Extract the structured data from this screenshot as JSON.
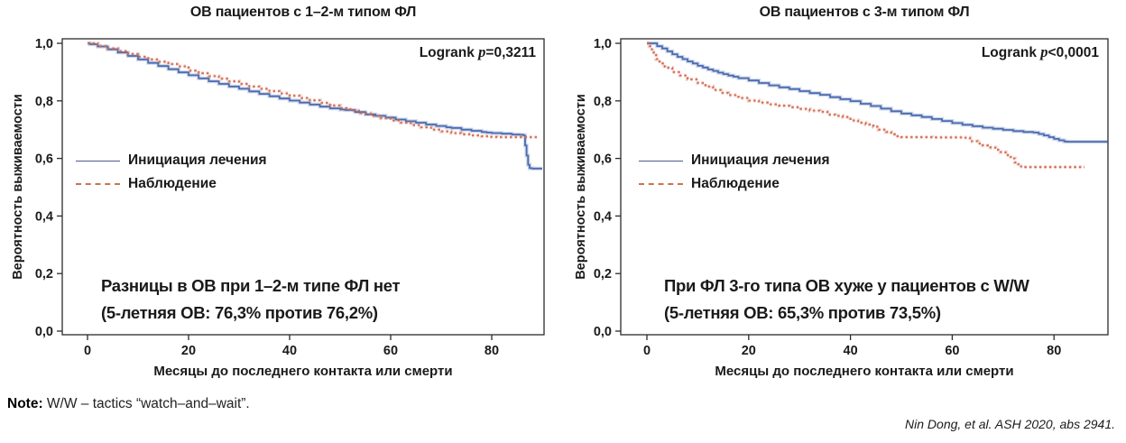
{
  "footer": {
    "note_label": "Note:",
    "note_text": " W/W – tactics “watch–and–wait”.",
    "citation": "Nin Dong, et al. ASH 2020, abs 2941."
  },
  "chart_data": [
    {
      "type": "line",
      "title": "ОВ пациентов с 1–2-м типом ФЛ",
      "logrank": {
        "prefix": "Logrank ",
        "p": "p",
        "suffix": "=0,3211"
      },
      "annotation": [
        "Разницы в ОВ при 1–2-м типе ФЛ нет",
        "(5-летняя ОВ: 76,3% против 76,2%)"
      ],
      "xlabel": "Месяцы до последнего контакта или смерти",
      "ylabel": "Вероятность выживаемости",
      "xlim": [
        -5,
        90.5
      ],
      "ylim": [
        0.0,
        1.0
      ],
      "grid": false,
      "legend_position": "inside-left-middle",
      "x_ticks": {
        "values": [
          0,
          20,
          40,
          60,
          80
        ],
        "labels": [
          "0",
          "20",
          "40",
          "60",
          "80"
        ]
      },
      "y_ticks": {
        "values": [
          1.0,
          0.8,
          0.6,
          0.4,
          0.2,
          0.0
        ],
        "labels": [
          "1,0",
          "0,8",
          "0,6",
          "0,4",
          "0,2",
          "0,0"
        ]
      },
      "series": [
        {
          "name": "Инициация лечения",
          "style": "solid",
          "color": "#4a6bb0",
          "halo": "rgba(74,107,176,0.28)",
          "points": [
            [
              0,
              1.0
            ],
            [
              0.5,
              0.997
            ],
            [
              2,
              0.989
            ],
            [
              4,
              0.979
            ],
            [
              6,
              0.968
            ],
            [
              8,
              0.956
            ],
            [
              10,
              0.944
            ],
            [
              12,
              0.932
            ],
            [
              14,
              0.921
            ],
            [
              16,
              0.91
            ],
            [
              18,
              0.899
            ],
            [
              20,
              0.889
            ],
            [
              22,
              0.878
            ],
            [
              24,
              0.868
            ],
            [
              26,
              0.859
            ],
            [
              28,
              0.85
            ],
            [
              30,
              0.842
            ],
            [
              32,
              0.833
            ],
            [
              34,
              0.824
            ],
            [
              36,
              0.816
            ],
            [
              38,
              0.808
            ],
            [
              40,
              0.801
            ],
            [
              42,
              0.794
            ],
            [
              44,
              0.787
            ],
            [
              46,
              0.78
            ],
            [
              48,
              0.774
            ],
            [
              50,
              0.77
            ],
            [
              51,
              0.768
            ],
            [
              53,
              0.761
            ],
            [
              55,
              0.753
            ],
            [
              57,
              0.748
            ],
            [
              59,
              0.742
            ],
            [
              61,
              0.735
            ],
            [
              63,
              0.729
            ],
            [
              65,
              0.724
            ],
            [
              67,
              0.718
            ],
            [
              69,
              0.713
            ],
            [
              71,
              0.708
            ],
            [
              72,
              0.706
            ],
            [
              74,
              0.7
            ],
            [
              76,
              0.696
            ],
            [
              78,
              0.692
            ],
            [
              79,
              0.69
            ],
            [
              80,
              0.688
            ],
            [
              82,
              0.686
            ],
            [
              84,
              0.683
            ],
            [
              85.5,
              0.682
            ],
            [
              86.3,
              0.68
            ],
            [
              86.6,
              0.645
            ],
            [
              86.9,
              0.61
            ],
            [
              87.2,
              0.578
            ],
            [
              87.5,
              0.566
            ],
            [
              88,
              0.565
            ],
            [
              90,
              0.565
            ]
          ]
        },
        {
          "name": "Наблюдение",
          "style": "dashed",
          "color": "#d4694f",
          "halo": "rgba(212,105,79,0.30)",
          "points": [
            [
              0,
              1.0
            ],
            [
              2,
              0.99
            ],
            [
              4,
              0.982
            ],
            [
              6,
              0.973
            ],
            [
              8,
              0.963
            ],
            [
              10,
              0.953
            ],
            [
              12,
              0.944
            ],
            [
              14,
              0.936
            ],
            [
              16,
              0.928
            ],
            [
              18,
              0.92
            ],
            [
              20,
              0.905
            ],
            [
              22,
              0.896
            ],
            [
              24,
              0.886
            ],
            [
              26,
              0.877
            ],
            [
              28,
              0.868
            ],
            [
              30,
              0.859
            ],
            [
              32,
              0.85
            ],
            [
              34,
              0.842
            ],
            [
              36,
              0.834
            ],
            [
              38,
              0.826
            ],
            [
              40,
              0.818
            ],
            [
              42,
              0.81
            ],
            [
              44,
              0.802
            ],
            [
              46,
              0.793
            ],
            [
              48,
              0.784
            ],
            [
              50,
              0.775
            ],
            [
              52,
              0.766
            ],
            [
              54,
              0.757
            ],
            [
              56,
              0.748
            ],
            [
              58,
              0.74
            ],
            [
              60,
              0.732
            ],
            [
              62,
              0.724
            ],
            [
              64,
              0.716
            ],
            [
              66,
              0.708
            ],
            [
              68,
              0.7
            ],
            [
              70,
              0.694
            ],
            [
              72,
              0.688
            ],
            [
              74,
              0.684
            ],
            [
              76,
              0.68
            ],
            [
              78,
              0.677
            ],
            [
              79.5,
              0.675
            ],
            [
              81,
              0.674
            ],
            [
              89,
              0.674
            ]
          ]
        }
      ]
    },
    {
      "type": "line",
      "title": "ОВ пациентов с 3-м типом ФЛ",
      "logrank": {
        "prefix": "Logrank ",
        "p": "p",
        "suffix": "<0,0001"
      },
      "annotation": [
        "При ФЛ 3-го типа ОВ хуже у пациентов с W/W",
        "(5-летняя ОВ: 65,3% против 73,5%)"
      ],
      "xlabel": "Месяцы до последнего контакта или смерти",
      "ylabel": "Вероятность выживаемости",
      "xlim": [
        -5.1,
        90.6
      ],
      "ylim": [
        0.0,
        1.0
      ],
      "grid": false,
      "legend_position": "inside-left-middle",
      "x_ticks": {
        "values": [
          0,
          20,
          40,
          60,
          80
        ],
        "labels": [
          "0",
          "20",
          "40",
          "60",
          "80"
        ]
      },
      "y_ticks": {
        "values": [
          1.0,
          0.8,
          0.6,
          0.4,
          0.2,
          0.0
        ],
        "labels": [
          "1,0",
          "0,8",
          "0,6",
          "0,4",
          "0,2",
          "0,0"
        ]
      },
      "series": [
        {
          "name": "Инициация лечения",
          "style": "solid",
          "color": "#4a6bb0",
          "halo": "rgba(74,107,176,0.28)",
          "points": [
            [
              0,
              1.0
            ],
            [
              1,
              1.0
            ],
            [
              2,
              0.99
            ],
            [
              3,
              0.982
            ],
            [
              4,
              0.972
            ],
            [
              5,
              0.962
            ],
            [
              6,
              0.953
            ],
            [
              7,
              0.945
            ],
            [
              8,
              0.937
            ],
            [
              9,
              0.93
            ],
            [
              10,
              0.922
            ],
            [
              11,
              0.916
            ],
            [
              12,
              0.909
            ],
            [
              13,
              0.904
            ],
            [
              14,
              0.898
            ],
            [
              15,
              0.893
            ],
            [
              16,
              0.888
            ],
            [
              17,
              0.884
            ],
            [
              18,
              0.879
            ],
            [
              20,
              0.871
            ],
            [
              22,
              0.862
            ],
            [
              24,
              0.854
            ],
            [
              26,
              0.847
            ],
            [
              28,
              0.841
            ],
            [
              30,
              0.834
            ],
            [
              32,
              0.827
            ],
            [
              34,
              0.821
            ],
            [
              36,
              0.813
            ],
            [
              38,
              0.806
            ],
            [
              40,
              0.799
            ],
            [
              42,
              0.79
            ],
            [
              44,
              0.782
            ],
            [
              46,
              0.773
            ],
            [
              48,
              0.764
            ],
            [
              50,
              0.756
            ],
            [
              52,
              0.75
            ],
            [
              54,
              0.744
            ],
            [
              56,
              0.737
            ],
            [
              58,
              0.73
            ],
            [
              60,
              0.723
            ],
            [
              62,
              0.717
            ],
            [
              64,
              0.712
            ],
            [
              66,
              0.707
            ],
            [
              68,
              0.703
            ],
            [
              70,
              0.699
            ],
            [
              72,
              0.695
            ],
            [
              74,
              0.692
            ],
            [
              76,
              0.69
            ],
            [
              77,
              0.685
            ],
            [
              78,
              0.68
            ],
            [
              79,
              0.674
            ],
            [
              80,
              0.668
            ],
            [
              81,
              0.663
            ],
            [
              82,
              0.659
            ],
            [
              82.5,
              0.658
            ],
            [
              90.5,
              0.658
            ]
          ]
        },
        {
          "name": "Наблюдение",
          "style": "dashed",
          "color": "#d4694f",
          "halo": "rgba(212,105,79,0.30)",
          "points": [
            [
              0,
              1.0
            ],
            [
              0.5,
              0.99
            ],
            [
              1,
              0.968
            ],
            [
              1.8,
              0.945
            ],
            [
              2.5,
              0.93
            ],
            [
              3.5,
              0.915
            ],
            [
              5,
              0.9
            ],
            [
              6.5,
              0.888
            ],
            [
              8,
              0.875
            ],
            [
              10,
              0.862
            ],
            [
              11.5,
              0.85
            ],
            [
              13,
              0.838
            ],
            [
              14.5,
              0.828
            ],
            [
              16,
              0.82
            ],
            [
              18,
              0.81
            ],
            [
              20,
              0.801
            ],
            [
              22,
              0.794
            ],
            [
              24,
              0.788
            ],
            [
              26,
              0.783
            ],
            [
              28,
              0.778
            ],
            [
              30,
              0.772
            ],
            [
              32,
              0.766
            ],
            [
              34,
              0.762
            ],
            [
              35.5,
              0.752
            ],
            [
              37,
              0.748
            ],
            [
              38.5,
              0.744
            ],
            [
              40,
              0.732
            ],
            [
              41.5,
              0.724
            ],
            [
              43,
              0.718
            ],
            [
              44.5,
              0.71
            ],
            [
              45.5,
              0.7
            ],
            [
              47,
              0.692
            ],
            [
              48,
              0.684
            ],
            [
              49,
              0.677
            ],
            [
              50,
              0.674
            ],
            [
              56,
              0.673
            ],
            [
              62,
              0.672
            ],
            [
              63.5,
              0.66
            ],
            [
              65,
              0.652
            ],
            [
              66,
              0.645
            ],
            [
              67.5,
              0.638
            ],
            [
              68.5,
              0.63
            ],
            [
              69.5,
              0.622
            ],
            [
              70.5,
              0.612
            ],
            [
              71.5,
              0.6
            ],
            [
              72.3,
              0.586
            ],
            [
              73,
              0.572
            ],
            [
              74,
              0.57
            ],
            [
              86,
              0.57
            ]
          ]
        }
      ]
    }
  ]
}
